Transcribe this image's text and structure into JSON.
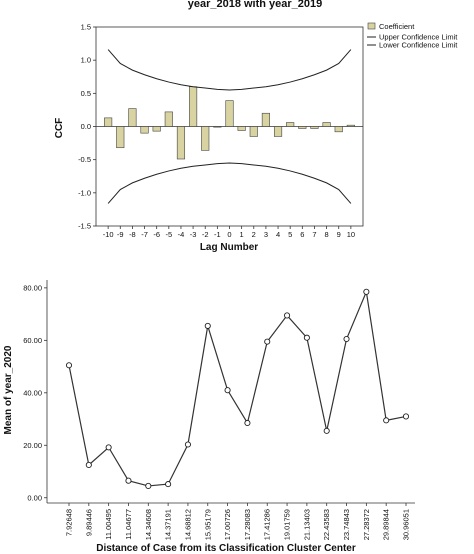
{
  "chart_data": [
    {
      "type": "bar",
      "title": "year_2018 with year_2019",
      "xlabel": "Lag Number",
      "ylabel": "CCF",
      "categories": [
        "-10",
        "-9",
        "-8",
        "-7",
        "-6",
        "-5",
        "-4",
        "-3",
        "-2",
        "-1",
        "0",
        "1",
        "2",
        "3",
        "4",
        "5",
        "6",
        "7",
        "8",
        "9",
        "10"
      ],
      "series": [
        {
          "name": "Coefficient",
          "values": [
            0.13,
            -0.32,
            0.27,
            -0.1,
            -0.07,
            0.22,
            -0.49,
            0.6,
            -0.36,
            -0.01,
            0.39,
            -0.06,
            -0.15,
            0.2,
            -0.15,
            0.06,
            -0.03,
            -0.03,
            0.06,
            -0.08,
            0.02
          ]
        },
        {
          "name": "Upper Confidence Limit",
          "values": [
            1.16,
            0.95,
            0.85,
            0.78,
            0.72,
            0.67,
            0.63,
            0.6,
            0.58,
            0.56,
            0.55,
            0.56,
            0.58,
            0.6,
            0.63,
            0.67,
            0.72,
            0.78,
            0.85,
            0.95,
            1.16
          ]
        },
        {
          "name": "Lower Confidence Limit",
          "values": [
            -1.16,
            -0.95,
            -0.85,
            -0.78,
            -0.72,
            -0.67,
            -0.63,
            -0.6,
            -0.58,
            -0.56,
            -0.55,
            -0.56,
            -0.58,
            -0.6,
            -0.63,
            -0.67,
            -0.72,
            -0.78,
            -0.85,
            -0.95,
            -1.16
          ]
        }
      ],
      "yticks": [
        "1.5",
        "1.0",
        "0.5",
        "0.0",
        "-0.5",
        "-1.0",
        "-1.5"
      ],
      "ylim": [
        -1.5,
        1.5
      ],
      "legend": "top-right",
      "bar_color": "#d8d3a0",
      "grid": false
    },
    {
      "type": "line",
      "title": "",
      "xlabel": "Distance of Case from its Classification Cluster Center",
      "ylabel": "Mean of year_2020",
      "categories": [
        "7.92648",
        "9.89446",
        "11.00495",
        "11.04677",
        "14.34608",
        "14.37191",
        "14.68812",
        "15.95179",
        "17.00726",
        "17.28083",
        "17.41286",
        "19.01759",
        "21.13403",
        "22.43583",
        "23.74843",
        "27.28372",
        "29.89844",
        "30.96051"
      ],
      "values": [
        50.5,
        12.5,
        19.2,
        6.5,
        4.5,
        5.2,
        20.3,
        65.5,
        41.0,
        28.5,
        59.5,
        69.5,
        61.0,
        25.5,
        60.5,
        78.5,
        29.5,
        31.0
      ],
      "yticks": [
        "0.00",
        "20.00",
        "40.00",
        "60.00",
        "80.00"
      ],
      "ylim": [
        -2,
        83
      ],
      "marker": "hollow-circle",
      "grid": false
    }
  ]
}
